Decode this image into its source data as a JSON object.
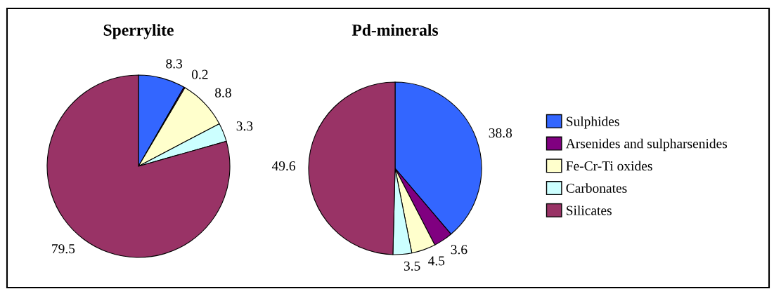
{
  "chart_data": [
    {
      "type": "pie",
      "title": "Sperrylite",
      "categories": [
        "Sulphides",
        "Arsenides and sulpharsenides",
        "Fe-Cr-Ti oxides",
        "Carbonates",
        "Silicates"
      ],
      "values": [
        8.3,
        0.2,
        8.8,
        3.3,
        79.5
      ],
      "colors": [
        "#3366ff",
        "#800080",
        "#ffffcc",
        "#ccffff",
        "#993366"
      ],
      "data_labels": true,
      "legend": "right"
    },
    {
      "type": "pie",
      "title": "Pd-minerals",
      "categories": [
        null,
        null,
        null,
        null,
        null
      ],
      "values": [
        38.8,
        3.6,
        4.5,
        3.5,
        49.6
      ],
      "colors": [
        "#3366ff",
        "#800080",
        "#ffffcc",
        "#ccffff",
        "#993366"
      ],
      "data_labels": true,
      "legend": false
    }
  ]
}
